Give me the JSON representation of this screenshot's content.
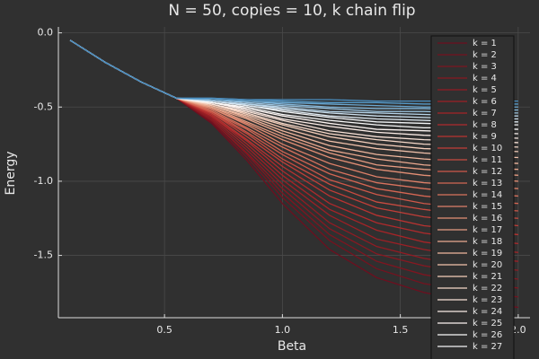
{
  "chart_data": {
    "type": "line",
    "title": "N = 50, copies = 10, k chain flip",
    "x_label": "Beta",
    "y_label": "Energy",
    "x": [
      0.1,
      0.25,
      0.4,
      0.55,
      0.7,
      0.85,
      1.0,
      1.2,
      1.4,
      1.6,
      1.8,
      2.0
    ],
    "xlim": [
      0.05,
      2.05
    ],
    "ylim": [
      -1.92,
      0.04
    ],
    "xticks": [
      0.5,
      {
        "value": 1.0,
        "label": "1.0"
      },
      1.5,
      {
        "value": 2.0,
        "label": "2.0"
      }
    ],
    "yticks": [
      {
        "value": 0,
        "label": "0.0"
      },
      -0.5,
      {
        "value": -1.0,
        "label": "-1.0"
      },
      -1.5
    ],
    "grid": true,
    "legend": "top right",
    "series": [
      {
        "name": "k = 1",
        "color": "#6d0f1f",
        "values": [
          -0.05,
          -0.2,
          -0.33,
          -0.44,
          -0.61,
          -0.86,
          -1.15,
          -1.46,
          -1.65,
          -1.75,
          -1.81,
          -1.85
        ]
      },
      {
        "name": "k = 2",
        "color": "#75121f",
        "values": [
          -0.05,
          -0.2,
          -0.33,
          -0.44,
          -0.6,
          -0.84,
          -1.11,
          -1.4,
          -1.59,
          -1.69,
          -1.74,
          -1.78
        ]
      },
      {
        "name": "k = 3",
        "color": "#7e1520",
        "values": [
          -0.05,
          -0.2,
          -0.33,
          -0.44,
          -0.59,
          -0.82,
          -1.08,
          -1.36,
          -1.54,
          -1.63,
          -1.68,
          -1.72
        ]
      },
      {
        "name": "k = 4",
        "color": "#881821",
        "values": [
          -0.05,
          -0.2,
          -0.33,
          -0.44,
          -0.59,
          -0.81,
          -1.05,
          -1.32,
          -1.49,
          -1.57,
          -1.62,
          -1.66
        ]
      },
      {
        "name": "k = 5",
        "color": "#921b23",
        "values": [
          -0.05,
          -0.2,
          -0.33,
          -0.44,
          -0.58,
          -0.79,
          -1.02,
          -1.28,
          -1.44,
          -1.52,
          -1.57,
          -1.6
        ]
      },
      {
        "name": "k = 6",
        "color": "#9c1f25",
        "values": [
          -0.05,
          -0.2,
          -0.33,
          -0.44,
          -0.57,
          -0.77,
          -0.99,
          -1.23,
          -1.39,
          -1.46,
          -1.51,
          -1.54
        ]
      },
      {
        "name": "k = 7",
        "color": "#a62427",
        "values": [
          -0.05,
          -0.2,
          -0.33,
          -0.44,
          -0.56,
          -0.75,
          -0.96,
          -1.19,
          -1.33,
          -1.41,
          -1.45,
          -1.48
        ]
      },
      {
        "name": "k = 8",
        "color": "#b02a2c",
        "values": [
          -0.05,
          -0.2,
          -0.33,
          -0.44,
          -0.56,
          -0.73,
          -0.93,
          -1.15,
          -1.28,
          -1.35,
          -1.39,
          -1.42
        ]
      },
      {
        "name": "k = 9",
        "color": "#b93331",
        "values": [
          -0.05,
          -0.2,
          -0.33,
          -0.44,
          -0.55,
          -0.72,
          -0.9,
          -1.1,
          -1.23,
          -1.3,
          -1.33,
          -1.36
        ]
      },
      {
        "name": "k = 10",
        "color": "#c13e38",
        "values": [
          -0.05,
          -0.2,
          -0.33,
          -0.44,
          -0.54,
          -0.7,
          -0.87,
          -1.06,
          -1.18,
          -1.24,
          -1.27,
          -1.3
        ]
      },
      {
        "name": "k = 11",
        "color": "#c84b40",
        "values": [
          -0.05,
          -0.2,
          -0.33,
          -0.44,
          -0.54,
          -0.68,
          -0.85,
          -1.02,
          -1.14,
          -1.19,
          -1.23,
          -1.25
        ]
      },
      {
        "name": "k = 12",
        "color": "#ce5849",
        "values": [
          -0.05,
          -0.2,
          -0.33,
          -0.44,
          -0.53,
          -0.67,
          -0.82,
          -0.99,
          -1.09,
          -1.15,
          -1.18,
          -1.2
        ]
      },
      {
        "name": "k = 13",
        "color": "#d46653",
        "values": [
          -0.05,
          -0.2,
          -0.33,
          -0.44,
          -0.53,
          -0.65,
          -0.8,
          -0.95,
          -1.05,
          -1.1,
          -1.13,
          -1.15
        ]
      },
      {
        "name": "k = 14",
        "color": "#d9735e",
        "values": [
          -0.05,
          -0.2,
          -0.33,
          -0.44,
          -0.52,
          -0.64,
          -0.77,
          -0.92,
          -1.01,
          -1.05,
          -1.08,
          -1.1
        ]
      },
      {
        "name": "k = 15",
        "color": "#de8169",
        "values": [
          -0.05,
          -0.2,
          -0.33,
          -0.44,
          -0.51,
          -0.62,
          -0.75,
          -0.88,
          -0.97,
          -1.01,
          -1.03,
          -1.05
        ]
      },
      {
        "name": "k = 16",
        "color": "#e38f75",
        "values": [
          -0.05,
          -0.2,
          -0.33,
          -0.44,
          -0.51,
          -0.61,
          -0.72,
          -0.84,
          -0.92,
          -0.96,
          -0.98,
          -1.0
        ]
      },
      {
        "name": "k = 17",
        "color": "#e79c82",
        "values": [
          -0.05,
          -0.2,
          -0.33,
          -0.44,
          -0.5,
          -0.6,
          -0.7,
          -0.81,
          -0.89,
          -0.92,
          -0.94,
          -0.96
        ]
      },
      {
        "name": "k = 18",
        "color": "#eba98f",
        "values": [
          -0.05,
          -0.2,
          -0.33,
          -0.44,
          -0.5,
          -0.58,
          -0.68,
          -0.79,
          -0.85,
          -0.89,
          -0.91,
          -0.92
        ]
      },
      {
        "name": "k = 19",
        "color": "#efb69d",
        "values": [
          -0.05,
          -0.2,
          -0.33,
          -0.44,
          -0.49,
          -0.57,
          -0.66,
          -0.76,
          -0.82,
          -0.85,
          -0.87,
          -0.88
        ]
      },
      {
        "name": "k = 20",
        "color": "#f2c2ab",
        "values": [
          -0.05,
          -0.2,
          -0.33,
          -0.44,
          -0.49,
          -0.56,
          -0.64,
          -0.73,
          -0.78,
          -0.81,
          -0.83,
          -0.84
        ]
      },
      {
        "name": "k = 21",
        "color": "#f5ceba",
        "values": [
          -0.05,
          -0.2,
          -0.33,
          -0.44,
          -0.48,
          -0.55,
          -0.62,
          -0.7,
          -0.75,
          -0.78,
          -0.79,
          -0.8
        ]
      },
      {
        "name": "k = 22",
        "color": "#f7d9c9",
        "values": [
          -0.05,
          -0.2,
          -0.33,
          -0.44,
          -0.48,
          -0.54,
          -0.61,
          -0.68,
          -0.72,
          -0.75,
          -0.76,
          -0.77
        ]
      },
      {
        "name": "k = 23",
        "color": "#f9e3d8",
        "values": [
          -0.05,
          -0.2,
          -0.33,
          -0.44,
          -0.48,
          -0.53,
          -0.59,
          -0.66,
          -0.7,
          -0.72,
          -0.73,
          -0.74
        ]
      },
      {
        "name": "k = 24",
        "color": "#fbece6",
        "values": [
          -0.05,
          -0.2,
          -0.33,
          -0.44,
          -0.47,
          -0.52,
          -0.58,
          -0.63,
          -0.67,
          -0.69,
          -0.7,
          -0.71
        ]
      },
      {
        "name": "k = 25",
        "color": "#fcf4f1",
        "values": [
          -0.05,
          -0.2,
          -0.33,
          -0.44,
          -0.47,
          -0.51,
          -0.56,
          -0.61,
          -0.65,
          -0.66,
          -0.67,
          -0.68
        ]
      },
      {
        "name": "k = 26",
        "color": "#fafafa",
        "values": [
          -0.05,
          -0.2,
          -0.33,
          -0.44,
          -0.47,
          -0.5,
          -0.55,
          -0.59,
          -0.62,
          -0.64,
          -0.64,
          -0.65
        ]
      },
      {
        "name": "k = 27",
        "color": "#f2f4f6",
        "values": [
          -0.05,
          -0.2,
          -0.33,
          -0.44,
          -0.46,
          -0.49,
          -0.53,
          -0.57,
          -0.6,
          -0.61,
          -0.62,
          -0.62
        ]
      },
      {
        "color": "#e1ecf4",
        "values": [
          -0.05,
          -0.2,
          -0.33,
          -0.44,
          -0.46,
          -0.49,
          -0.52,
          -0.56,
          -0.58,
          -0.59,
          -0.6,
          -0.6
        ]
      },
      {
        "color": "#cde1ef",
        "values": [
          -0.05,
          -0.2,
          -0.33,
          -0.44,
          -0.46,
          -0.48,
          -0.51,
          -0.54,
          -0.56,
          -0.57,
          -0.58,
          -0.58
        ]
      },
      {
        "color": "#b6d4e9",
        "values": [
          -0.05,
          -0.2,
          -0.33,
          -0.44,
          -0.46,
          -0.48,
          -0.5,
          -0.53,
          -0.54,
          -0.55,
          -0.56,
          -0.56
        ]
      },
      {
        "color": "#9dc6e2",
        "values": [
          -0.05,
          -0.2,
          -0.33,
          -0.44,
          -0.45,
          -0.47,
          -0.49,
          -0.51,
          -0.53,
          -0.53,
          -0.54,
          -0.54
        ]
      },
      {
        "color": "#84b7da",
        "values": [
          -0.05,
          -0.2,
          -0.33,
          -0.44,
          -0.45,
          -0.46,
          -0.48,
          -0.5,
          -0.51,
          -0.51,
          -0.52,
          -0.52
        ]
      },
      {
        "color": "#6aa8d2",
        "values": [
          -0.05,
          -0.2,
          -0.33,
          -0.44,
          -0.45,
          -0.46,
          -0.47,
          -0.48,
          -0.49,
          -0.5,
          -0.5,
          -0.5
        ]
      },
      {
        "color": "#559ac9",
        "values": [
          -0.05,
          -0.2,
          -0.33,
          -0.44,
          -0.44,
          -0.45,
          -0.46,
          -0.47,
          -0.47,
          -0.48,
          -0.48,
          -0.48
        ]
      },
      {
        "color": "#4a8ec0",
        "values": [
          -0.05,
          -0.2,
          -0.33,
          -0.44,
          -0.44,
          -0.45,
          -0.45,
          -0.45,
          -0.46,
          -0.46,
          -0.46,
          -0.46
        ]
      }
    ]
  }
}
